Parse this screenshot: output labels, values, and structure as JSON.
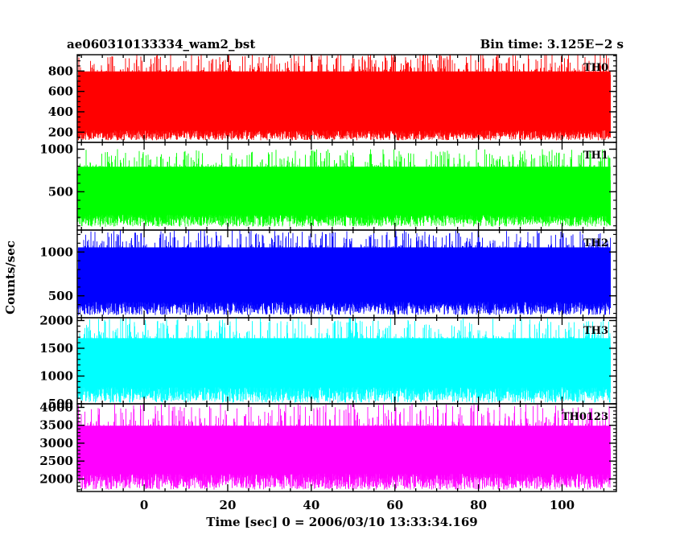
{
  "chart_data": {
    "type": "line",
    "title_left": "ae060310133334_wam2_bst",
    "title_right": "Bin time: 3.125E−2 s",
    "xlabel": "Time [sec] 0 = 2006/03/10 13:33:34.169",
    "ylabel": "Counts/sec",
    "x_range": [
      -16,
      113
    ],
    "x_data_range": [
      -15.8,
      111.6
    ],
    "x_ticks": [
      0,
      20,
      40,
      60,
      80,
      100
    ],
    "x_tick_labels": [
      "0",
      "20",
      "40",
      "60",
      "80",
      "100"
    ],
    "x_minor_step": 5,
    "panels": [
      {
        "name": "TH0",
        "color": "#ff0000",
        "ylim": [
          100,
          960
        ],
        "y_ticks": [
          200,
          400,
          600,
          800
        ],
        "y_tick_labels": [
          "200",
          "400",
          "600",
          "800"
        ],
        "y_minor_step": 50,
        "level_min": 120,
        "level_max": 980,
        "band_low": 220,
        "band_high": 820,
        "mean": 520
      },
      {
        "name": "TH1",
        "color": "#00ff00",
        "ylim": [
          50,
          1080
        ],
        "y_ticks": [
          500,
          1000
        ],
        "y_tick_labels": [
          "500",
          "1000"
        ],
        "y_minor_step": 100,
        "level_min": 90,
        "level_max": 1000,
        "band_low": 230,
        "band_high": 820,
        "mean": 500
      },
      {
        "name": "TH2",
        "color": "#0000ff",
        "ylim": [
          250,
          1250
        ],
        "y_ticks": [
          500,
          1000
        ],
        "y_tick_labels": [
          "500",
          "1000"
        ],
        "y_minor_step": 100,
        "level_min": 280,
        "level_max": 1250,
        "band_low": 430,
        "band_high": 1080,
        "mean": 740
      },
      {
        "name": "TH3",
        "color": "#00ffff",
        "ylim": [
          500,
          2050
        ],
        "y_ticks": [
          500,
          1000,
          1500,
          2000
        ],
        "y_tick_labels": [
          "500",
          "1000",
          "1500",
          "2000"
        ],
        "y_minor_step": 100,
        "level_min": 520,
        "level_max": 2050,
        "band_low": 800,
        "band_high": 1720,
        "mean": 1250
      },
      {
        "name": "TH0123",
        "color": "#ff00ff",
        "ylim": [
          1650,
          4100
        ],
        "y_ticks": [
          2000,
          2500,
          3000,
          3500,
          4000
        ],
        "y_tick_labels": [
          "2000",
          "2500",
          "3000",
          "3500",
          "4000"
        ],
        "y_minor_step": 100,
        "level_min": 1700,
        "level_max": 4100,
        "band_low": 2150,
        "band_high": 3550,
        "mean": 2780
      }
    ]
  }
}
